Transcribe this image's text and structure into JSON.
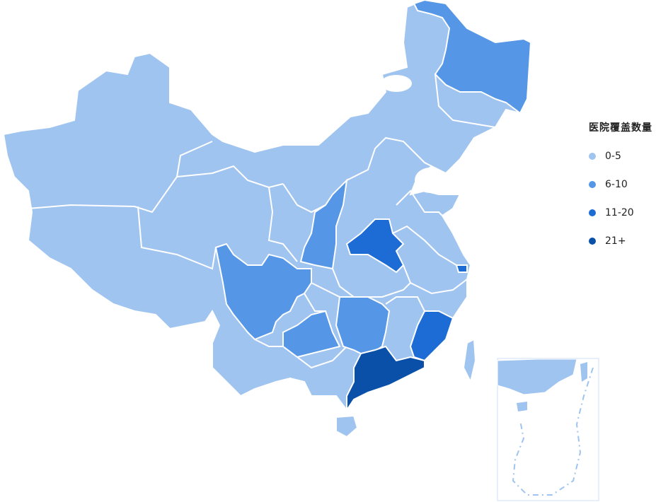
{
  "legend": {
    "title": "医院覆盖数量",
    "items": [
      {
        "label": "0-5",
        "color": "#a0c4f0"
      },
      {
        "label": "6-10",
        "color": "#5597e6"
      },
      {
        "label": "11-20",
        "color": "#1d6bd4"
      },
      {
        "label": "21+",
        "color": "#0a4fa8"
      }
    ]
  },
  "base_level": 0,
  "region_levels": [
    1,
    1,
    2,
    1,
    1,
    1,
    3,
    2,
    2,
    0,
    0
  ]
}
